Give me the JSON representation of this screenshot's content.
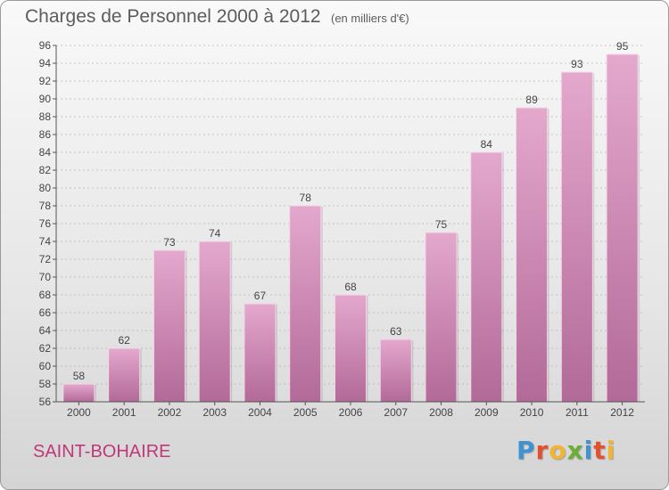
{
  "header": {
    "title": "Charges de Personnel 2000 à 2012",
    "unit": "(en milliers d'€)"
  },
  "footer": {
    "commune": "SAINT-BOHAIRE",
    "brand_letters": [
      "P",
      "r",
      "o",
      "x",
      "i",
      "t",
      "i"
    ],
    "brand_colors": [
      "#3f93d0",
      "#e3502d",
      "#f2b531",
      "#6cad36",
      "#3f93d0",
      "#e3502d",
      "#f2b531"
    ]
  },
  "colors": {
    "bar_top": "#e4a8cd",
    "bar_bottom": "#b26a98",
    "grid": "#999999"
  },
  "chart_data": {
    "type": "bar",
    "title": "Charges de Personnel 2000 à 2012",
    "subtitle": "(en milliers d'€)",
    "xlabel": "",
    "ylabel": "",
    "categories": [
      "2000",
      "2001",
      "2002",
      "2003",
      "2004",
      "2005",
      "2006",
      "2007",
      "2008",
      "2009",
      "2010",
      "2011",
      "2012"
    ],
    "values": [
      58,
      62,
      73,
      74,
      67,
      78,
      68,
      63,
      75,
      84,
      89,
      93,
      95
    ],
    "ylim": [
      56,
      96
    ],
    "ytick_step": 2,
    "grid": "horizontal-dashed",
    "legend": "none",
    "data_labels": true
  }
}
